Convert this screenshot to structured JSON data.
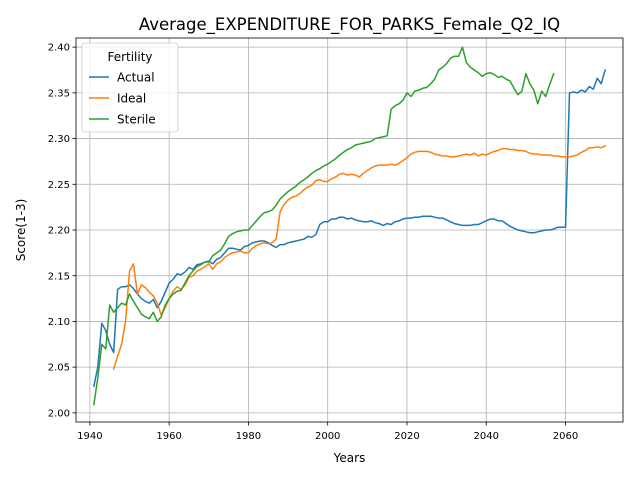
{
  "chart_data": {
    "type": "line",
    "title": "Average_EXPENDITURE_FOR_PARKS_Female_Q2_IQ",
    "xlabel": "Years",
    "ylabel": "Score(1-3)",
    "xlim": [
      1936.5,
      2074.5
    ],
    "ylim": [
      1.99,
      2.41
    ],
    "xticks": [
      1940,
      1960,
      1980,
      2000,
      2020,
      2040,
      2060
    ],
    "xtick_labels": [
      "1940",
      "1960",
      "1980",
      "2000",
      "2020",
      "2040",
      "2060"
    ],
    "yticks": [
      2.0,
      2.05,
      2.1,
      2.15,
      2.2,
      2.25,
      2.3,
      2.35,
      2.4
    ],
    "ytick_labels": [
      "2.00",
      "2.05",
      "2.10",
      "2.15",
      "2.20",
      "2.25",
      "2.30",
      "2.35",
      "2.40"
    ],
    "grid": true,
    "legend": {
      "title": "Fertility",
      "placement": "upper-left"
    },
    "series": [
      {
        "name": "Actual",
        "color": "#1f77b4",
        "x": [
          1941,
          1942,
          1943,
          1944,
          1945,
          1946,
          1947,
          1948,
          1949,
          1950,
          1951,
          1952,
          1953,
          1954,
          1955,
          1956,
          1957,
          1958,
          1959,
          1960,
          1961,
          1962,
          1963,
          1964,
          1965,
          1966,
          1967,
          1968,
          1969,
          1970,
          1971,
          1972,
          1973,
          1974,
          1975,
          1976,
          1977,
          1978,
          1979,
          1980,
          1981,
          1982,
          1983,
          1984,
          1985,
          1986,
          1987,
          1988,
          1989,
          1990,
          1991,
          1992,
          1993,
          1994,
          1995,
          1996,
          1997,
          1998,
          1999,
          2000,
          2001,
          2002,
          2003,
          2004,
          2005,
          2006,
          2007,
          2008,
          2009,
          2010,
          2011,
          2012,
          2013,
          2014,
          2015,
          2016,
          2017,
          2018,
          2019,
          2020,
          2021,
          2022,
          2023,
          2024,
          2025,
          2026,
          2027,
          2028,
          2029,
          2030,
          2031,
          2032,
          2033,
          2034,
          2035,
          2036,
          2037,
          2038,
          2039,
          2040,
          2041,
          2042,
          2043,
          2044,
          2045,
          2046,
          2047,
          2048,
          2049,
          2050,
          2051,
          2052,
          2053,
          2054,
          2055,
          2056,
          2057,
          2058,
          2059,
          2060,
          2061,
          2062,
          2063,
          2064,
          2065,
          2066,
          2067,
          2068,
          2069,
          2070
        ],
        "y": [
          2.029,
          2.05,
          2.098,
          2.09,
          2.075,
          2.066,
          2.135,
          2.138,
          2.138,
          2.14,
          2.136,
          2.13,
          2.125,
          2.122,
          2.12,
          2.124,
          2.115,
          2.122,
          2.132,
          2.142,
          2.146,
          2.152,
          2.151,
          2.154,
          2.159,
          2.157,
          2.162,
          2.163,
          2.165,
          2.166,
          2.163,
          2.168,
          2.17,
          2.175,
          2.18,
          2.18,
          2.179,
          2.178,
          2.182,
          2.183,
          2.186,
          2.187,
          2.188,
          2.188,
          2.186,
          2.183,
          2.181,
          2.184,
          2.184,
          2.186,
          2.187,
          2.188,
          2.189,
          2.19,
          2.193,
          2.192,
          2.195,
          2.206,
          2.209,
          2.209,
          2.212,
          2.212,
          2.214,
          2.214,
          2.212,
          2.213,
          2.211,
          2.21,
          2.209,
          2.209,
          2.21,
          2.208,
          2.207,
          2.205,
          2.207,
          2.206,
          2.209,
          2.21,
          2.212,
          2.213,
          2.213,
          2.214,
          2.214,
          2.215,
          2.215,
          2.215,
          2.214,
          2.213,
          2.213,
          2.211,
          2.209,
          2.207,
          2.206,
          2.205,
          2.205,
          2.205,
          2.206,
          2.206,
          2.208,
          2.21,
          2.212,
          2.212,
          2.21,
          2.21,
          2.207,
          2.204,
          2.202,
          2.2,
          2.199,
          2.198,
          2.197,
          2.197,
          2.198,
          2.199,
          2.2,
          2.2,
          2.201,
          2.203,
          2.203,
          2.203,
          2.35,
          2.351,
          2.35,
          2.353,
          2.351,
          2.357,
          2.354,
          2.366,
          2.36,
          2.375
        ]
      },
      {
        "name": "Ideal",
        "color": "#ff7f0e",
        "x": [
          1946,
          1947,
          1948,
          1949,
          1950,
          1951,
          1952,
          1953,
          1954,
          1955,
          1956,
          1957,
          1958,
          1959,
          1960,
          1961,
          1962,
          1963,
          1964,
          1965,
          1966,
          1967,
          1968,
          1969,
          1970,
          1971,
          1972,
          1973,
          1974,
          1975,
          1976,
          1977,
          1978,
          1979,
          1980,
          1981,
          1982,
          1983,
          1984,
          1985,
          1986,
          1987,
          1988,
          1989,
          1990,
          1991,
          1992,
          1993,
          1994,
          1995,
          1996,
          1997,
          1998,
          1999,
          2000,
          2001,
          2002,
          2003,
          2004,
          2005,
          2006,
          2007,
          2008,
          2009,
          2010,
          2011,
          2012,
          2013,
          2014,
          2015,
          2016,
          2017,
          2018,
          2019,
          2020,
          2021,
          2022,
          2023,
          2024,
          2025,
          2026,
          2027,
          2028,
          2029,
          2030,
          2031,
          2032,
          2033,
          2034,
          2035,
          2036,
          2037,
          2038,
          2039,
          2040,
          2041,
          2042,
          2043,
          2044,
          2045,
          2046,
          2047,
          2048,
          2049,
          2050,
          2051,
          2052,
          2053,
          2054,
          2055,
          2056,
          2057,
          2058,
          2059,
          2060,
          2061,
          2062,
          2063,
          2064,
          2065,
          2066,
          2067,
          2068,
          2069,
          2070
        ],
        "y": [
          2.048,
          2.062,
          2.075,
          2.1,
          2.155,
          2.163,
          2.13,
          2.14,
          2.137,
          2.132,
          2.128,
          2.12,
          2.107,
          2.115,
          2.125,
          2.133,
          2.138,
          2.135,
          2.14,
          2.148,
          2.15,
          2.155,
          2.157,
          2.16,
          2.163,
          2.157,
          2.163,
          2.165,
          2.17,
          2.173,
          2.175,
          2.176,
          2.177,
          2.175,
          2.175,
          2.18,
          2.183,
          2.185,
          2.186,
          2.185,
          2.186,
          2.19,
          2.22,
          2.228,
          2.233,
          2.236,
          2.237,
          2.24,
          2.244,
          2.247,
          2.249,
          2.254,
          2.255,
          2.253,
          2.253,
          2.256,
          2.258,
          2.261,
          2.262,
          2.26,
          2.261,
          2.26,
          2.258,
          2.262,
          2.265,
          2.268,
          2.27,
          2.271,
          2.271,
          2.271,
          2.272,
          2.271,
          2.273,
          2.276,
          2.279,
          2.283,
          2.285,
          2.286,
          2.286,
          2.286,
          2.285,
          2.283,
          2.282,
          2.281,
          2.281,
          2.28,
          2.28,
          2.281,
          2.282,
          2.283,
          2.282,
          2.284,
          2.281,
          2.283,
          2.282,
          2.284,
          2.286,
          2.287,
          2.289,
          2.289,
          2.288,
          2.288,
          2.287,
          2.287,
          2.286,
          2.284,
          2.283,
          2.283,
          2.282,
          2.282,
          2.282,
          2.281,
          2.281,
          2.28,
          2.28,
          2.28,
          2.281,
          2.282,
          2.285,
          2.287,
          2.29,
          2.29,
          2.291,
          2.29,
          2.292
        ]
      },
      {
        "name": "Sterile",
        "color": "#2ca02c",
        "x": [
          1941,
          1942,
          1943,
          1944,
          1945,
          1946,
          1947,
          1948,
          1949,
          1950,
          1951,
          1952,
          1953,
          1954,
          1955,
          1956,
          1957,
          1958,
          1959,
          1960,
          1961,
          1962,
          1963,
          1964,
          1965,
          1966,
          1967,
          1968,
          1969,
          1970,
          1971,
          1972,
          1973,
          1974,
          1975,
          1976,
          1977,
          1978,
          1979,
          1980,
          1981,
          1982,
          1983,
          1984,
          1985,
          1986,
          1987,
          1988,
          1989,
          1990,
          1991,
          1992,
          1993,
          1994,
          1995,
          1996,
          1997,
          1998,
          1999,
          2000,
          2001,
          2002,
          2003,
          2004,
          2005,
          2006,
          2007,
          2008,
          2009,
          2010,
          2011,
          2012,
          2013,
          2014,
          2015,
          2016,
          2017,
          2018,
          2019,
          2020,
          2021,
          2022,
          2023,
          2024,
          2025,
          2026,
          2027,
          2028,
          2029,
          2030,
          2031,
          2032,
          2033,
          2034,
          2035,
          2036,
          2037,
          2038,
          2039,
          2040,
          2041,
          2042,
          2043,
          2044,
          2045,
          2046,
          2047,
          2048,
          2049,
          2050,
          2051,
          2052,
          2053,
          2054,
          2055,
          2056,
          2057
        ],
        "y": [
          2.009,
          2.038,
          2.075,
          2.07,
          2.118,
          2.11,
          2.115,
          2.12,
          2.118,
          2.13,
          2.122,
          2.115,
          2.108,
          2.105,
          2.103,
          2.11,
          2.1,
          2.105,
          2.118,
          2.125,
          2.13,
          2.133,
          2.134,
          2.142,
          2.15,
          2.155,
          2.16,
          2.162,
          2.165,
          2.165,
          2.172,
          2.175,
          2.178,
          2.185,
          2.193,
          2.196,
          2.198,
          2.199,
          2.2,
          2.2,
          2.205,
          2.21,
          2.215,
          2.219,
          2.22,
          2.222,
          2.227,
          2.234,
          2.238,
          2.242,
          2.245,
          2.248,
          2.252,
          2.255,
          2.258,
          2.262,
          2.265,
          2.267,
          2.27,
          2.272,
          2.275,
          2.278,
          2.282,
          2.285,
          2.288,
          2.29,
          2.293,
          2.294,
          2.295,
          2.296,
          2.297,
          2.3,
          2.301,
          2.302,
          2.303,
          2.332,
          2.336,
          2.338,
          2.342,
          2.35,
          2.346,
          2.352,
          2.353,
          2.355,
          2.356,
          2.36,
          2.365,
          2.375,
          2.378,
          2.382,
          2.388,
          2.39,
          2.39,
          2.4,
          2.383,
          2.378,
          2.375,
          2.372,
          2.368,
          2.371,
          2.372,
          2.37,
          2.367,
          2.368,
          2.365,
          2.363,
          2.355,
          2.348,
          2.352,
          2.371,
          2.36,
          2.353,
          2.338,
          2.352,
          2.346,
          2.359,
          2.371
        ]
      }
    ]
  }
}
